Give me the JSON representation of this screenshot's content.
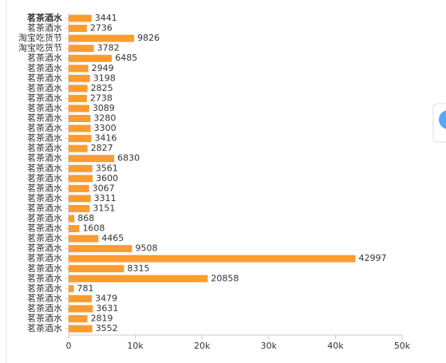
{
  "chart_data": {
    "type": "bar",
    "orientation": "horizontal",
    "categories": [
      "茗茶酒水",
      "茗茶酒水",
      "淘宝吃货节",
      "淘宝吃货节",
      "茗茶酒水",
      "茗茶酒水",
      "茗茶酒水",
      "茗茶酒水",
      "茗茶酒水",
      "茗茶酒水",
      "茗茶酒水",
      "茗茶酒水",
      "茗茶酒水",
      "茗茶酒水",
      "茗茶酒水",
      "茗茶酒水",
      "茗茶酒水",
      "茗茶酒水",
      "茗茶酒水",
      "茗茶酒水",
      "茗茶酒水",
      "茗茶酒水",
      "茗茶酒水",
      "茗茶酒水",
      "茗茶酒水",
      "茗茶酒水",
      "茗茶酒水",
      "茗茶酒水",
      "茗茶酒水",
      "茗茶酒水",
      "茗茶酒水",
      "茗茶酒水"
    ],
    "values": [
      3441,
      2736,
      9826,
      3782,
      6485,
      2949,
      3198,
      2825,
      2738,
      3089,
      3280,
      3300,
      3416,
      2827,
      6830,
      3561,
      3600,
      3067,
      3311,
      3151,
      868,
      1608,
      4465,
      9508,
      42997,
      8315,
      20858,
      781,
      3479,
      3631,
      2819,
      3552
    ],
    "color": "#fa9c2f",
    "xlim": [
      0,
      50000
    ],
    "xticks": [
      0,
      {
        "value": 10000,
        "label": "10k"
      },
      {
        "value": 20000,
        "label": "20k"
      },
      {
        "value": 30000,
        "label": "30k"
      },
      {
        "value": 40000,
        "label": "40k"
      },
      {
        "value": 50000,
        "label": "50k"
      }
    ]
  }
}
